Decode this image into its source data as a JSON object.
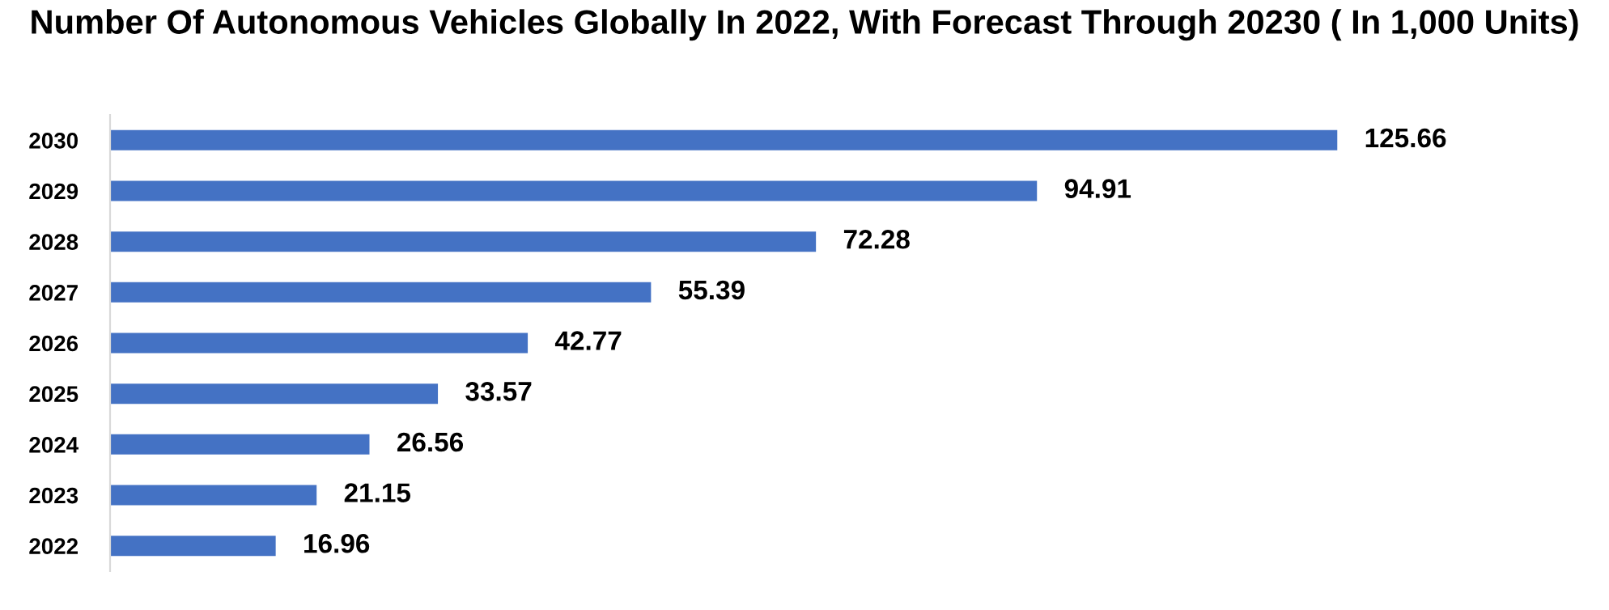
{
  "chart_data": {
    "type": "bar",
    "orientation": "horizontal",
    "title": "Number Of Autonomous Vehicles Globally In 2022, With Forecast Through 20230 ( In 1,000 Units)",
    "categories": [
      "2030",
      "2029",
      "2028",
      "2027",
      "2026",
      "2025",
      "2024",
      "2023",
      "2022"
    ],
    "values": [
      125.66,
      94.91,
      72.28,
      55.39,
      42.77,
      33.57,
      26.56,
      21.15,
      16.96
    ],
    "color": "#4472c4",
    "data_labels": true,
    "grid": false,
    "legend": false,
    "tick_labels": "y"
  }
}
